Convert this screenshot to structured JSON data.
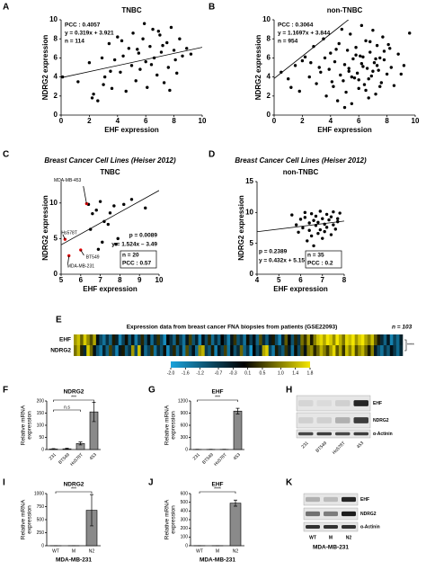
{
  "chart_data": [
    {
      "panel": "A",
      "type": "scatter",
      "title": "TNBC",
      "xlabel": "EHF expression",
      "ylabel": "NDRG2 expression",
      "xlim": [
        0,
        10
      ],
      "ylim": [
        0,
        10
      ],
      "xticks": [
        0,
        2,
        4,
        6,
        8,
        10
      ],
      "yticks": [
        0,
        2,
        4,
        6,
        8,
        10
      ],
      "series": [
        {
          "color": "#000000",
          "x": [
            0.1,
            1.2,
            2.0,
            2.3,
            2.6,
            2.9,
            3.1,
            3.4,
            3.6,
            3.8,
            4.0,
            4.2,
            4.4,
            4.6,
            4.8,
            5.0,
            5.1,
            5.3,
            5.5,
            5.6,
            5.8,
            6.0,
            6.1,
            6.3,
            6.5,
            6.6,
            6.8,
            7.0,
            7.1,
            7.3,
            7.5,
            7.6,
            7.8,
            8.0,
            8.2,
            8.4,
            8.6,
            8.9,
            9.2,
            2.2,
            3.0,
            4.3,
            5.4,
            6.4,
            7.2,
            8.1,
            3.5,
            5.9,
            6.9,
            7.7
          ],
          "y": [
            4.0,
            3.5,
            5.5,
            2.2,
            1.5,
            6.0,
            4.0,
            7.5,
            2.8,
            5.8,
            8.2,
            4.5,
            6.2,
            2.5,
            7.0,
            5.2,
            8.6,
            3.6,
            6.5,
            4.8,
            8.0,
            5.6,
            2.9,
            7.2,
            9.0,
            6.0,
            4.2,
            8.4,
            6.6,
            3.4,
            7.6,
            5.0,
            9.2,
            6.8,
            4.4,
            8.0,
            6.2,
            7.0,
            6.4,
            1.8,
            3.2,
            7.8,
            6.9,
            5.3,
            7.3,
            5.8,
            4.6,
            9.6,
            8.8,
            2.6
          ]
        }
      ],
      "fit": {
        "slope": 0.319,
        "intercept": 3.921
      },
      "annotations": [
        "PCC : 0.4057",
        "y = 0.319x + 3.921",
        "n = 114"
      ]
    },
    {
      "panel": "B",
      "type": "scatter",
      "title": "non-TNBC",
      "xlabel": "EHF expression",
      "ylabel": "NDRG2 expression",
      "xlim": [
        0,
        10
      ],
      "ylim": [
        0,
        10
      ],
      "xticks": [
        0,
        2,
        4,
        6,
        8,
        10
      ],
      "yticks": [
        0,
        2,
        4,
        6,
        8,
        10
      ],
      "series": [
        {
          "color": "#000000",
          "x": [
            0.5,
            1.0,
            1.5,
            1.8,
            2.2,
            2.5,
            2.8,
            3.0,
            3.2,
            3.5,
            3.7,
            3.9,
            4.0,
            4.2,
            4.3,
            4.5,
            4.6,
            4.7,
            4.8,
            4.9,
            5.0,
            5.1,
            5.2,
            5.3,
            5.4,
            5.5,
            5.6,
            5.7,
            5.8,
            5.9,
            6.0,
            6.1,
            6.2,
            6.3,
            6.4,
            6.5,
            6.6,
            6.7,
            6.8,
            6.9,
            7.0,
            7.1,
            7.2,
            7.3,
            7.4,
            7.5,
            7.6,
            7.7,
            7.8,
            8.0,
            8.2,
            8.5,
            8.8,
            9.2,
            9.6,
            2.0,
            3.3,
            4.4,
            5.0,
            5.5,
            5.8,
            6.0,
            6.2,
            6.5,
            6.8,
            7.0,
            7.2,
            7.5,
            7.8,
            8.3,
            1.2,
            2.6,
            3.6,
            4.1,
            5.3,
            6.3,
            6.7,
            7.3,
            8.1,
            9.0
          ],
          "y": [
            4.5,
            3.8,
            5.2,
            2.5,
            6.1,
            4.0,
            7.2,
            3.3,
            5.0,
            8.0,
            2.0,
            4.8,
            6.5,
            3.0,
            5.6,
            1.5,
            7.5,
            4.2,
            9.0,
            3.6,
            5.3,
            2.4,
            6.8,
            4.6,
            8.5,
            1.2,
            5.9,
            3.9,
            7.1,
            4.4,
            2.8,
            6.2,
            9.4,
            5.1,
            3.2,
            7.8,
            4.9,
            1.8,
            6.6,
            4.1,
            8.9,
            5.5,
            2.2,
            7.3,
            4.7,
            6.0,
            3.4,
            8.2,
            5.8,
            4.3,
            7.0,
            3.1,
            6.4,
            5.2,
            8.6,
            5.7,
            4.5,
            6.9,
            0.8,
            4.0,
            6.3,
            3.7,
            5.4,
            2.6,
            7.7,
            4.6,
            5.9,
            3.0,
            6.7,
            5.0,
            2.9,
            5.5,
            6.0,
            3.5,
            4.9,
            6.1,
            3.8,
            5.2,
            7.4,
            4.3
          ]
        }
      ],
      "fit": {
        "slope": 1.1697,
        "intercept": 3.844
      },
      "annotations": [
        "PCC : 0.3064",
        "y = 1.1697x + 3.844",
        "n = 954"
      ]
    },
    {
      "panel": "C",
      "type": "scatter",
      "subtitle": "Breast Cancer Cell Lines (Heiser 2012)",
      "title": "TNBC",
      "xlabel": "EHF expression",
      "ylabel": "NDRG2 expression",
      "xlim": [
        5,
        10
      ],
      "ylim": [
        0,
        13
      ],
      "xticks": [
        5,
        6,
        7,
        8,
        9,
        10
      ],
      "yticks": [
        0,
        5,
        10
      ],
      "series": [
        {
          "color": "#000000",
          "x": [
            6.4,
            6.6,
            6.8,
            7.0,
            7.2,
            7.5,
            7.7,
            7.9,
            8.2,
            8.6,
            9.3,
            6.5,
            7.1,
            7.4,
            6.9,
            7.8
          ],
          "y": [
            9.8,
            8.5,
            9.0,
            10.2,
            7.4,
            8.6,
            9.6,
            5.0,
            9.8,
            10.5,
            9.3,
            6.3,
            4.5,
            7.0,
            3.5,
            4.2
          ]
        },
        {
          "color": "#e00000",
          "x": [
            6.3,
            5.2,
            6.0,
            5.4
          ],
          "y": [
            9.9,
            4.9,
            3.4,
            2.6
          ],
          "labels": [
            "MDA-MB-453",
            "Hs578T",
            "BT549",
            "MDA-MB-231"
          ]
        }
      ],
      "fit": {
        "slope": 1.524,
        "intercept": -3.49
      },
      "annotations": [
        "p = 0.0089",
        "y = 1.524x – 3.49"
      ],
      "boxed": [
        "n = 20",
        "PCC : 0.57"
      ]
    },
    {
      "panel": "D",
      "type": "scatter",
      "subtitle": "Breast Cancer Cell Lines (Heiser 2012)",
      "title": "non-TNBC",
      "xlabel": "EHF expression",
      "ylabel": "NDRG2 expression",
      "xlim": [
        4,
        8
      ],
      "ylim": [
        0,
        15
      ],
      "xticks": [
        4,
        5,
        6,
        7,
        8
      ],
      "yticks": [
        0,
        5,
        10,
        15
      ],
      "series": [
        {
          "color": "#000000",
          "x": [
            5.6,
            5.8,
            5.9,
            6.0,
            6.1,
            6.2,
            6.2,
            6.3,
            6.4,
            6.4,
            6.5,
            6.5,
            6.6,
            6.6,
            6.7,
            6.7,
            6.8,
            6.8,
            6.9,
            6.9,
            7.0,
            7.0,
            7.1,
            7.1,
            7.2,
            7.2,
            7.3,
            7.4,
            7.4,
            7.5,
            7.5,
            7.6,
            7.7,
            7.7,
            7.8
          ],
          "y": [
            9.6,
            8.0,
            6.8,
            8.9,
            7.5,
            10.0,
            9.2,
            5.4,
            8.3,
            7.1,
            9.8,
            6.2,
            8.7,
            4.6,
            7.9,
            9.4,
            6.6,
            8.4,
            10.2,
            7.2,
            5.8,
            9.0,
            8.1,
            6.9,
            9.7,
            7.6,
            8.8,
            6.4,
            9.3,
            8.0,
            10.1,
            7.3,
            9.0,
            8.5,
            9.9
          ]
        }
      ],
      "fit": {
        "slope": 0.432,
        "intercept": 5.15
      },
      "annotations": [
        "p = 0.2389",
        "y = 0.432x + 5.15"
      ],
      "boxed": [
        "n = 35",
        "PCC : 0.2"
      ]
    },
    {
      "panel": "F",
      "type": "bar",
      "title": "NDRG2",
      "ylabel": [
        "Relative mRNA",
        "expression"
      ],
      "categories": [
        "231",
        "BT549",
        "Hs578T",
        "453"
      ],
      "values": [
        2,
        3,
        25,
        155
      ],
      "errors": [
        2,
        2,
        6,
        40
      ],
      "colors": [
        "#ffffff",
        "#dddddd",
        "#9a9a9a",
        "#8a8a8a"
      ],
      "ylim": [
        0,
        200
      ],
      "yticks": [
        0,
        50,
        100,
        150,
        200
      ],
      "significance": [
        "n.s",
        "***"
      ]
    },
    {
      "panel": "G",
      "type": "bar",
      "title": "EHF",
      "ylabel": [
        "Relative mRNA",
        "expression"
      ],
      "categories": [
        "231",
        "BT549",
        "Hs578T",
        "453"
      ],
      "values": [
        3,
        3,
        3,
        950
      ],
      "errors": [
        2,
        2,
        2,
        70
      ],
      "colors": [
        "#ffffff",
        "#dddddd",
        "#9a9a9a",
        "#8a8a8a"
      ],
      "ylim": [
        0,
        1200
      ],
      "yticks": [
        0,
        300,
        600,
        900,
        1200
      ],
      "significance": [
        "***"
      ]
    },
    {
      "panel": "I",
      "type": "bar",
      "title": "NDRG2",
      "ylabel": [
        "Relative mRNA",
        "expression"
      ],
      "categories": [
        "WT",
        "M",
        "N2"
      ],
      "values": [
        1,
        2,
        680
      ],
      "errors": [
        1,
        1,
        300
      ],
      "colors": [
        "#ffffff",
        "#dddddd",
        "#8a8a8a"
      ],
      "xlabel": "MDA-MB-231",
      "ylim": [
        0,
        1000
      ],
      "yticks": [
        0,
        250,
        500,
        750,
        1000
      ],
      "significance": [
        "***"
      ]
    },
    {
      "panel": "J",
      "type": "bar",
      "title": "EHF",
      "ylabel": [
        "Relative mRNA",
        "expression"
      ],
      "categories": [
        "WT",
        "M",
        "N2"
      ],
      "values": [
        1,
        1,
        490
      ],
      "errors": [
        1,
        1,
        35
      ],
      "colors": [
        "#ffffff",
        "#dddddd",
        "#8a8a8a"
      ],
      "xlabel": "MDA-MB-231",
      "ylim": [
        0,
        600
      ],
      "yticks": [
        0,
        100,
        200,
        300,
        400,
        500,
        600
      ],
      "significance": [
        "****"
      ]
    }
  ],
  "heatmap": {
    "panel": "E",
    "title": "Expression data from breast cancer FNA biopsies from patients (GSE22093)",
    "n_label": "n = 103",
    "rows": [
      "EHF",
      "NDRG2"
    ],
    "significance": "****",
    "colormap": [
      "#1aa3dc",
      "#000000",
      "#f4e600"
    ],
    "clim": [
      -2,
      1.8
    ],
    "colorbar_ticks": [
      {
        "value": -2,
        "label": "-2.0"
      },
      -1.6,
      -1.2,
      -0.7,
      -0.3,
      0.1,
      0.5,
      {
        "value": 1,
        "label": "1.0"
      },
      1.4,
      1.8
    ],
    "values": [
      [
        1.2,
        1.5,
        0.8,
        1.6,
        1.1,
        0.6,
        1.3,
        -0.2,
        -0.9,
        -1.4,
        -0.6,
        -1.2,
        0.2,
        -0.4,
        -1.6,
        -0.8,
        0.1,
        -1.1,
        -0.3,
        -1.5,
        -0.7,
        0.3,
        -1.0,
        -0.2,
        -1.3,
        -0.5,
        0.4,
        -0.9,
        -1.7,
        -0.1,
        -0.6,
        -1.2,
        0.2,
        -0.8,
        -1.4,
        -0.3,
        0.5,
        -1.0,
        -0.4,
        -1.6,
        -0.2,
        -0.9,
        0.3,
        -1.3,
        -0.5,
        -1.1,
        0.0,
        -0.7,
        -1.5,
        -0.3,
        0.4,
        -1.0,
        -0.6,
        -1.4,
        0.1,
        -0.8,
        -0.2,
        -1.2,
        0.6,
        -0.5,
        -1.1,
        -0.3,
        0.2,
        -0.9,
        -1.6,
        -0.4,
        0.7,
        -0.1,
        -1.0,
        0.3,
        -0.6,
        0.9,
        0.4,
        1.2,
        0.2,
        1.0,
        1.5,
        1.7,
        1.3,
        1.8,
        1.6,
        1.1,
        1.8,
        1.4,
        0.9,
        1.7,
        1.5,
        1.8,
        1.2,
        1.6,
        1.8,
        1.3,
        1.0,
        1.5,
        0.7,
        0.2,
        -0.5,
        -1.2,
        -0.3,
        -1.6,
        -0.8,
        -1.3,
        -0.4
      ],
      [
        0.9,
        1.4,
        0.3,
        -0.5,
        1.6,
        0.8,
        -0.2,
        -1.0,
        -1.5,
        -0.4,
        -1.2,
        0.5,
        -0.7,
        -1.6,
        -0.3,
        0.2,
        -1.1,
        -0.6,
        1.2,
        -0.9,
        1.5,
        -0.2,
        -1.3,
        -0.8,
        0.4,
        -1.4,
        -0.5,
        -1.0,
        0.1,
        -1.7,
        -0.6,
        0.3,
        -1.2,
        -0.4,
        -1.5,
        0.6,
        -0.9,
        -0.2,
        -1.3,
        1.1,
        1.4,
        -0.7,
        -1.1,
        0.2,
        -1.6,
        -0.3,
        -0.8,
        0.5,
        -1.4,
        -0.1,
        -1.0,
        -0.5,
        0.8,
        -1.2,
        -0.6,
        -1.8,
        0.0,
        -0.9,
        -0.4,
        1.3,
        1.6,
        -0.8,
        -1.5,
        0.2,
        -0.7,
        -1.1,
        0.4,
        -0.3,
        -1.4,
        0.1,
        -0.9,
        0.6,
        -0.2,
        0.9,
        1.1,
        0.3,
        0.8,
        1.4,
        1.0,
        0.5,
        1.2,
        1.7,
        0.7,
        1.3,
        0.4,
        1.5,
        1.0,
        1.6,
        0.6,
        1.1,
        1.4,
        0.8,
        0.2,
        1.0,
        -0.3,
        -0.9,
        -1.4,
        -0.6,
        -1.1,
        -0.2,
        -0.7,
        -1.3,
        -0.5
      ]
    ]
  },
  "blots": [
    {
      "panel": "H",
      "rows": [
        "EHF",
        "NDRG2",
        "α-Actinin"
      ],
      "lanes": [
        "231",
        "BT549",
        "Hs578T",
        "453"
      ]
    },
    {
      "panel": "K",
      "rows": [
        "EHF",
        "NDRG2",
        "α-Actinin"
      ],
      "lanes": [
        "WT",
        "M",
        "N2"
      ],
      "xlabel": "MDA-MB-231"
    }
  ]
}
